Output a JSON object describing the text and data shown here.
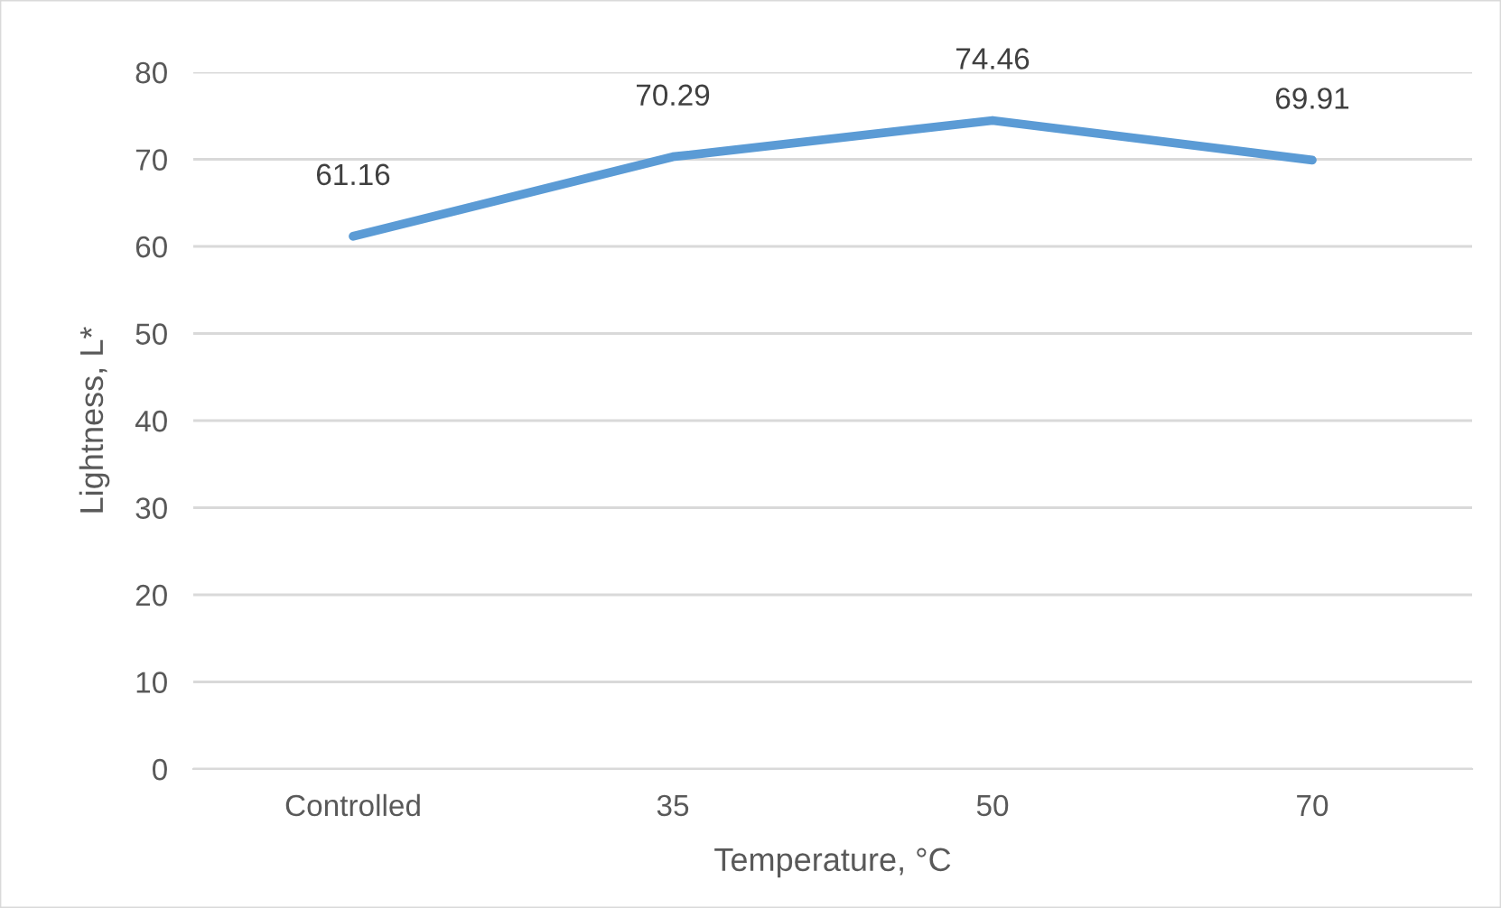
{
  "chart_data": {
    "type": "line",
    "xlabel": "Temperature, °C",
    "ylabel": "Lightness, L*",
    "categories": [
      "Controlled",
      "35",
      "50",
      "70"
    ],
    "series": [
      {
        "color": "#5b9bd5",
        "values": [
          61.16,
          70.29,
          74.46,
          69.91
        ]
      }
    ],
    "ylim": [
      0,
      80
    ],
    "yticks": [
      0,
      10,
      20,
      30,
      40,
      50,
      60,
      70,
      80
    ],
    "grid": "y",
    "data_labels": true
  }
}
